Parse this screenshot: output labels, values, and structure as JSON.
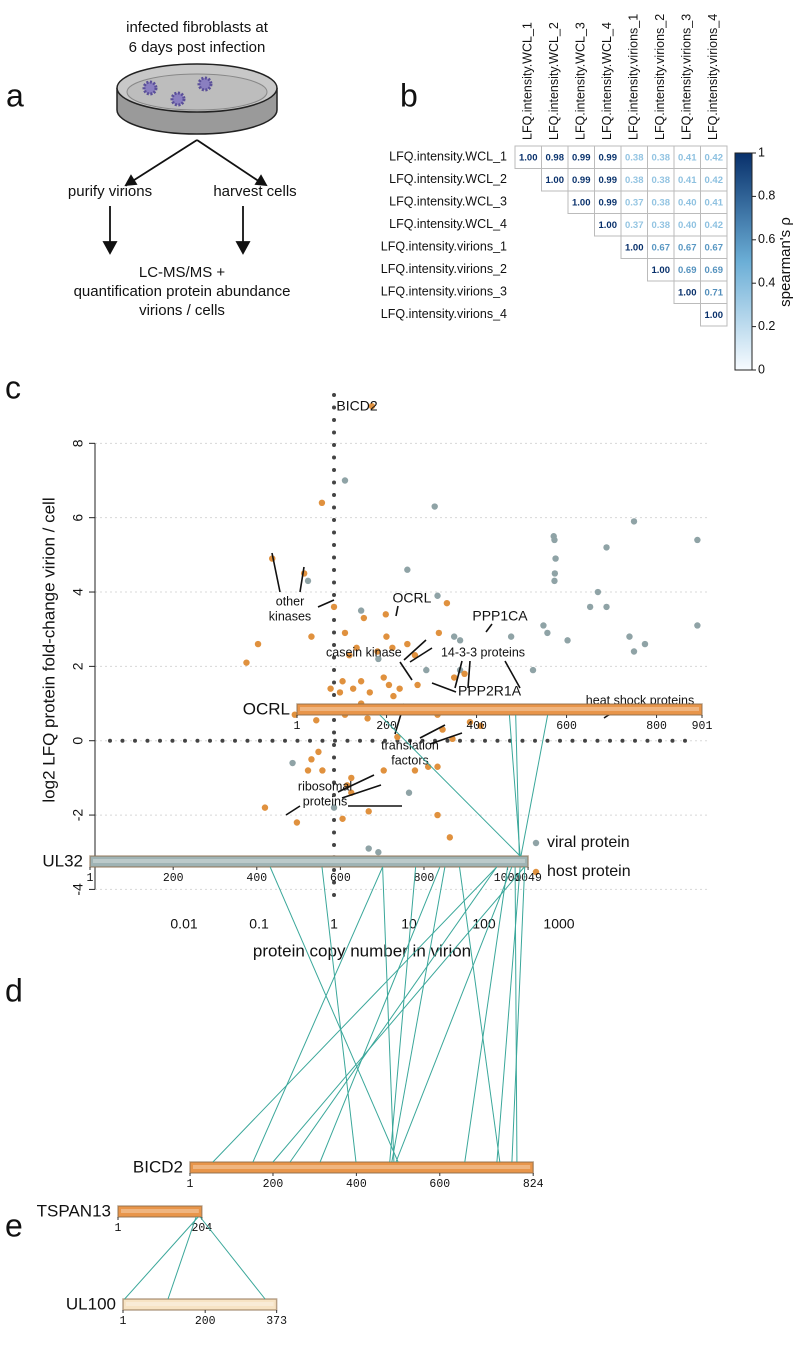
{
  "panel_a": {
    "label": "a",
    "top_text": [
      "infected fibroblasts at",
      "6 days post infection"
    ],
    "left_step": "purify virions",
    "right_step": "harvest cells",
    "bottom_text": [
      "LC-MS/MS +",
      "quantification protein abundance",
      "virions / cells"
    ]
  },
  "chart_data": [
    {
      "type": "heatmap",
      "panel_label": "b",
      "rows": [
        "LFQ.intensity.WCL_1",
        "LFQ.intensity.WCL_2",
        "LFQ.intensity.WCL_3",
        "LFQ.intensity.WCL_4",
        "LFQ.intensity.virions_1",
        "LFQ.intensity.virions_2",
        "LFQ.intensity.virions_3",
        "LFQ.intensity.virions_4"
      ],
      "columns": [
        "LFQ.intensity.WCL_1",
        "LFQ.intensity.WCL_2",
        "LFQ.intensity.WCL_3",
        "LFQ.intensity.WCL_4",
        "LFQ.intensity.virions_1",
        "LFQ.intensity.virions_2",
        "LFQ.intensity.virions_3",
        "LFQ.intensity.virions_4"
      ],
      "values": [
        [
          1,
          0.98,
          0.99,
          0.99,
          0.38,
          0.38,
          0.41,
          0.42
        ],
        [
          null,
          1,
          0.99,
          0.99,
          0.38,
          0.38,
          0.41,
          0.42
        ],
        [
          null,
          null,
          1,
          0.99,
          0.37,
          0.38,
          0.4,
          0.41
        ],
        [
          null,
          null,
          null,
          1,
          0.37,
          0.38,
          0.4,
          0.42
        ],
        [
          null,
          null,
          null,
          null,
          1,
          0.67,
          0.67,
          0.67
        ],
        [
          null,
          null,
          null,
          null,
          null,
          1,
          0.69,
          0.69
        ],
        [
          null,
          null,
          null,
          null,
          null,
          null,
          1,
          0.71
        ],
        [
          null,
          null,
          null,
          null,
          null,
          null,
          null,
          1
        ]
      ],
      "value_labels": [
        [
          "1.00",
          "0.98",
          "0.99",
          "0.99",
          "0.38",
          "0.38",
          "0.41",
          "0.42"
        ],
        [
          null,
          "1.00",
          "0.99",
          "0.99",
          "0.38",
          "0.38",
          "0.41",
          "0.42"
        ],
        [
          null,
          null,
          "1.00",
          "0.99",
          "0.37",
          "0.38",
          "0.40",
          "0.41"
        ],
        [
          null,
          null,
          null,
          "1.00",
          "0.37",
          "0.38",
          "0.40",
          "0.42"
        ],
        [
          null,
          null,
          null,
          null,
          "1.00",
          "0.67",
          "0.67",
          "0.67"
        ],
        [
          null,
          null,
          null,
          null,
          null,
          "1.00",
          "0.69",
          "0.69"
        ],
        [
          null,
          null,
          null,
          null,
          null,
          null,
          "1.00",
          "0.71"
        ],
        [
          null,
          null,
          null,
          null,
          null,
          null,
          null,
          "1.00"
        ]
      ],
      "zlim": [
        0,
        1
      ],
      "zticks": [
        0,
        0.2,
        0.4,
        0.6,
        0.8,
        1
      ],
      "colorbar_label": "spearman's ρ",
      "colormap": [
        "#f7fbff",
        "#6baed6",
        "#08306b"
      ]
    },
    {
      "type": "scatter",
      "panel_label": "c",
      "x_label": "protein copy number in virion",
      "y_label": "log2 LFQ protein fold-change virion / cell",
      "xlog": true,
      "xlim": [
        0.00065,
        100000
      ],
      "ylim": [
        -4.5,
        9.3
      ],
      "xticks": [
        0.01,
        0.1,
        1,
        10,
        100,
        1000
      ],
      "yticks": [
        -4,
        -2,
        0,
        2,
        4,
        6,
        8
      ],
      "grid": true,
      "reference_lines": {
        "x": 1,
        "y": 0
      },
      "legend": "lower right",
      "series": [
        {
          "name": "viral protein",
          "color": "#8fa3a6",
          "x": [
            1.4,
            22,
            0.45,
            9.5,
            2.3,
            24,
            620,
            40,
            48,
            700,
            230,
            850,
            870,
            900,
            880,
            870,
            1300,
            2600,
            3300,
            4300,
            4300,
            10000,
            8700,
            10000,
            14000,
            70000,
            70000,
            3.9,
            17,
            48,
            0.28,
            10,
            1,
            2.9,
            3.9,
            450
          ],
          "values": [
            7.0,
            6.3,
            4.3,
            4.6,
            3.5,
            3.9,
            3.1,
            2.8,
            2.7,
            2.9,
            2.8,
            5.5,
            5.4,
            4.9,
            4.5,
            4.3,
            2.7,
            3.6,
            4.0,
            3.6,
            5.2,
            5.9,
            2.8,
            2.4,
            2.6,
            3.1,
            5.4,
            2.2,
            1.9,
            1.9,
            -0.6,
            -1.4,
            -1.8,
            -2.9,
            -3.0,
            1.9
          ]
        },
        {
          "name": "host protein",
          "color": "#e0913e",
          "x": [
            3.2,
            0.69,
            0.15,
            0.4,
            0.097,
            0.068,
            0.5,
            1,
            2.5,
            4.9,
            1.4,
            1.6,
            2,
            5,
            6,
            9.5,
            12,
            13,
            25,
            32,
            40,
            55,
            3.8,
            4.6,
            2.3,
            1.3,
            1.2,
            1.8,
            2.3,
            3,
            3.3,
            5.4,
            6.2,
            7.5,
            2.8,
            1.4,
            1,
            0.9,
            0.3,
            5.5,
            7,
            24,
            28,
            65,
            90,
            38,
            4.6,
            12,
            18,
            24,
            0.5,
            0.45,
            0.7,
            1.7,
            1.5,
            1.7,
            2.9,
            1.3,
            0.32,
            0.12,
            24,
            35,
            0.62,
            0.58
          ],
          "values": [
            9.0,
            6.4,
            4.9,
            4.5,
            2.6,
            2.1,
            2.8,
            3.6,
            3.3,
            3.4,
            2.9,
            2.3,
            2.5,
            2.8,
            2.5,
            2.6,
            2.3,
            1.5,
            2.9,
            3.7,
            1.7,
            1.8,
            2.4,
            1.7,
            1.6,
            1.6,
            1.3,
            1.4,
            1.0,
            1.3,
            0.8,
            1.5,
            1.2,
            1.4,
            0.6,
            0.7,
            0.9,
            1.4,
            0.7,
            0.8,
            0.1,
            0.7,
            0.3,
            0.5,
            0.4,
            0.05,
            -0.8,
            -0.8,
            -0.7,
            -0.7,
            -0.5,
            -0.8,
            -0.8,
            -1.0,
            -1.2,
            -1.4,
            -1.9,
            -2.1,
            -2.2,
            -1.8,
            -2.0,
            -2.6,
            -0.3,
            0.55
          ]
        }
      ],
      "annotations": [
        [
          "BICD2"
        ],
        [
          "other",
          "kinases"
        ],
        [
          "OCRL"
        ],
        [
          "casein kinase"
        ],
        [
          "14-3-3 proteins"
        ],
        [
          "PPP1CA"
        ],
        [
          "PPP2R1A"
        ],
        [
          "heat shock proteins"
        ],
        [
          "translation",
          "factors"
        ],
        [
          "ribosomal",
          "proteins"
        ]
      ]
    }
  ],
  "panel_d": {
    "label": "d",
    "proteins": [
      {
        "name": "OCRL",
        "length": 901,
        "ticks": [
          1,
          200,
          400,
          600,
          800,
          901
        ],
        "color": "#e8954a"
      },
      {
        "name": "UL32",
        "length": 1049,
        "ticks": [
          1,
          200,
          400,
          600,
          800,
          1000,
          1049
        ],
        "color": "#9fb3b4"
      },
      {
        "name": "BICD2",
        "length": 824,
        "ticks": [
          1,
          200,
          400,
          600,
          824
        ],
        "color": "#e8954a"
      }
    ],
    "crosslinks": {
      "OCRL-UL32": [
        [
          185,
          1030
        ],
        [
          473,
          1030
        ],
        [
          487,
          1028
        ],
        [
          558,
          1032
        ]
      ],
      "UL32-BICD2": [
        [
          974,
          56
        ],
        [
          701,
          152
        ],
        [
          974,
          241
        ],
        [
          838,
          313
        ],
        [
          556,
          399
        ],
        [
          850,
          485
        ],
        [
          1010,
          495
        ],
        [
          432,
          500
        ],
        [
          701,
          490
        ],
        [
          1030,
          737
        ],
        [
          1041,
          773
        ],
        [
          1018,
          785
        ],
        [
          885,
          744
        ],
        [
          1000,
          660
        ],
        [
          780,
          480
        ],
        [
          1040,
          200
        ]
      ]
    }
  },
  "panel_e": {
    "label": "e",
    "proteins": [
      {
        "name": "TSPAN13",
        "length": 204,
        "ticks": [
          1,
          204
        ],
        "color": "#e8954a"
      },
      {
        "name": "UL100",
        "length": 373,
        "ticks": [
          1,
          200,
          373
        ],
        "color": "#f7e3c4"
      }
    ],
    "crosslinks": {
      "TSPAN13-UL100": [
        [
          195,
          5
        ],
        [
          190,
          110
        ],
        [
          200,
          345
        ]
      ]
    }
  }
}
